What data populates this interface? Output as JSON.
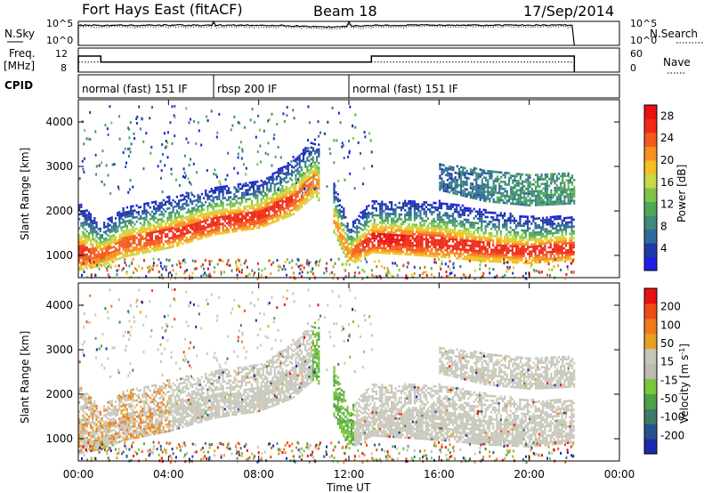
{
  "header": {
    "title": "Fort Hays East (fitACF)",
    "beam": "Beam 18",
    "date": "17/Sep/2014"
  },
  "side_labels": {
    "nsky": "N.Sky",
    "nsearch": "N.Search",
    "freq": "Freq.",
    "freq_unit": "[MHz]",
    "nave": "Nave",
    "cpid": "CPID"
  },
  "noise_panel": {
    "left_ticks": [
      "10^5",
      "10^0"
    ],
    "right_ticks": [
      "10^5",
      "10^0"
    ]
  },
  "freq_panel": {
    "left_ticks": [
      "12",
      "8"
    ],
    "right_ticks": [
      "60",
      "0"
    ]
  },
  "colors": {
    "frame": "#000000",
    "power_scale": [
      "#1e1ee6",
      "#1f3aa8",
      "#2f6a9c",
      "#3f8a7a",
      "#4ea85a",
      "#7fc44a",
      "#c8d84a",
      "#f4c020",
      "#f69020",
      "#f45a1c",
      "#ef2a16",
      "#e81010"
    ],
    "velocity_scale": [
      "#1a2aa8",
      "#28508c",
      "#3f7a68",
      "#4ea04c",
      "#7ac63a",
      "#bcbcb0",
      "#c6c6bc",
      "#e8a020",
      "#f07a1c",
      "#ef4a16",
      "#e81010"
    ],
    "ground_scatter_gray": "#c8c8bc"
  },
  "chart_data": [
    {
      "type": "line",
      "panel": "noise",
      "title": "",
      "series": [
        {
          "name": "N.Sky",
          "style": "solid"
        },
        {
          "name": "N.Search",
          "style": "dotted"
        }
      ],
      "ylim_log10": [
        0,
        5
      ],
      "x_range_ut_hours": [
        0,
        24
      ],
      "data_end_ut_hours": 22.0
    },
    {
      "type": "line",
      "panel": "frequency_nave",
      "series": [
        {
          "name": "Freq.",
          "style": "solid",
          "x": [
            0.0,
            1.0,
            1.0,
            13.0,
            13.0,
            22.0
          ],
          "y": [
            12.0,
            12.0,
            10.5,
            10.5,
            12.0,
            12.0
          ]
        },
        {
          "name": "Nave",
          "style": "dotted",
          "x": [
            0.0,
            22.0
          ],
          "y": [
            25,
            25
          ]
        }
      ],
      "ylim_left": [
        8,
        14
      ],
      "ylim_right": [
        0,
        60
      ]
    },
    {
      "type": "table",
      "panel": "cpid",
      "segments": [
        {
          "start": 0.0,
          "end": 6.0,
          "label": "normal (fast) 151 IF"
        },
        {
          "start": 6.0,
          "end": 12.0,
          "label": "rbsp 200 IF"
        },
        {
          "start": 12.0,
          "end": 22.0,
          "label": "normal (fast) 151 IF"
        }
      ]
    },
    {
      "type": "heatmap",
      "panel": "power",
      "ylabel": "Slant Range [km]",
      "yticks": [
        "1000",
        "2000",
        "3000",
        "4000"
      ],
      "ylim": [
        500,
        4500
      ],
      "colorbar": {
        "label": "Power [dB]",
        "ticks": [
          "4",
          "8",
          "12",
          "16",
          "20",
          "24",
          "28"
        ],
        "range": [
          0,
          30
        ]
      },
      "bands": [
        {
          "name": "main F-region echo",
          "x": [
            0,
            1,
            2,
            4,
            6,
            8,
            9.5,
            10.5,
            12,
            13,
            16,
            18,
            20,
            22
          ],
          "center": [
            1500,
            1300,
            1600,
            1800,
            2050,
            2200,
            2600,
            3100,
            1300,
            1700,
            1650,
            1500,
            1400,
            1450
          ],
          "width": [
            800,
            500,
            600,
            600,
            550,
            550,
            650,
            700,
            500,
            600,
            650,
            600,
            550,
            500
          ],
          "peak_db": [
            26,
            24,
            24,
            26,
            27,
            27,
            25,
            22,
            22,
            28,
            27,
            26,
            26,
            27
          ]
        },
        {
          "name": "upper band",
          "x": [
            16,
            18,
            20,
            22
          ],
          "center": [
            2800,
            2600,
            2500,
            2550
          ],
          "width": [
            300,
            350,
            350,
            350
          ],
          "peak_db": [
            6,
            8,
            9,
            10
          ]
        }
      ]
    },
    {
      "type": "heatmap",
      "panel": "velocity",
      "ylabel": "Slant Range [km]",
      "yticks": [
        "1000",
        "2000",
        "3000",
        "4000"
      ],
      "ylim": [
        500,
        4500
      ],
      "colorbar": {
        "label": "Velocity [m s^-1]",
        "ticks": [
          "200",
          "100",
          "50",
          "15",
          "-15",
          "-50",
          "-100",
          "-200"
        ],
        "range": [
          -250,
          250
        ]
      },
      "xlabel": "Time UT",
      "xticks": [
        "00:00",
        "04:00",
        "08:00",
        "12:00",
        "16:00",
        "20:00",
        "00:00"
      ],
      "xlim_ut_hours": [
        0,
        24
      ]
    }
  ]
}
